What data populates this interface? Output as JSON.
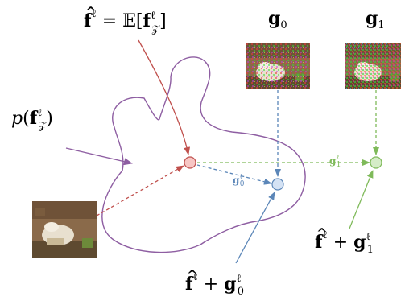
{
  "labels": {
    "mean": {
      "f": "f",
      "hat": "^",
      "sup": "ℓ",
      "eq": " = ",
      "E": "𝔼",
      "open": "[",
      "f2": "f",
      "sup2": "ℓ",
      "sub2": "𝒵",
      "close": "]"
    },
    "distribution": {
      "p": "p",
      "open": "(",
      "f": "f",
      "sup": "ℓ",
      "sub": "𝒵",
      "close": ")"
    },
    "g0_title": {
      "g": "g",
      "sub": "0"
    },
    "g1_title": {
      "g": "g",
      "sub": "1"
    },
    "sum0": {
      "f": "f",
      "hat": "^",
      "sup": "ℓ",
      "plus": " + ",
      "g": "g",
      "gsup": "ℓ",
      "gsub": "0"
    },
    "sum1": {
      "f": "f",
      "hat": "^",
      "sup": "ℓ",
      "plus": " + ",
      "g": "g",
      "gsup": "ℓ",
      "gsub": "1"
    },
    "vec0": {
      "g": "g",
      "sup": "ℓ",
      "sub": "0"
    },
    "vec1": {
      "g": "g",
      "sup": "ℓ",
      "sub": "1"
    }
  },
  "colors": {
    "red": "#c0504d",
    "red_fill": "#f7c6c4",
    "blue": "#5b86b8",
    "blue_fill": "#d4e2f4",
    "green": "#7fba5a",
    "green_fill": "#d5ecc7",
    "purple": "#8e5ea2"
  },
  "images": {
    "input": "input-image",
    "g0": "perturbed-image-g0",
    "g1": "perturbed-image-g1"
  }
}
